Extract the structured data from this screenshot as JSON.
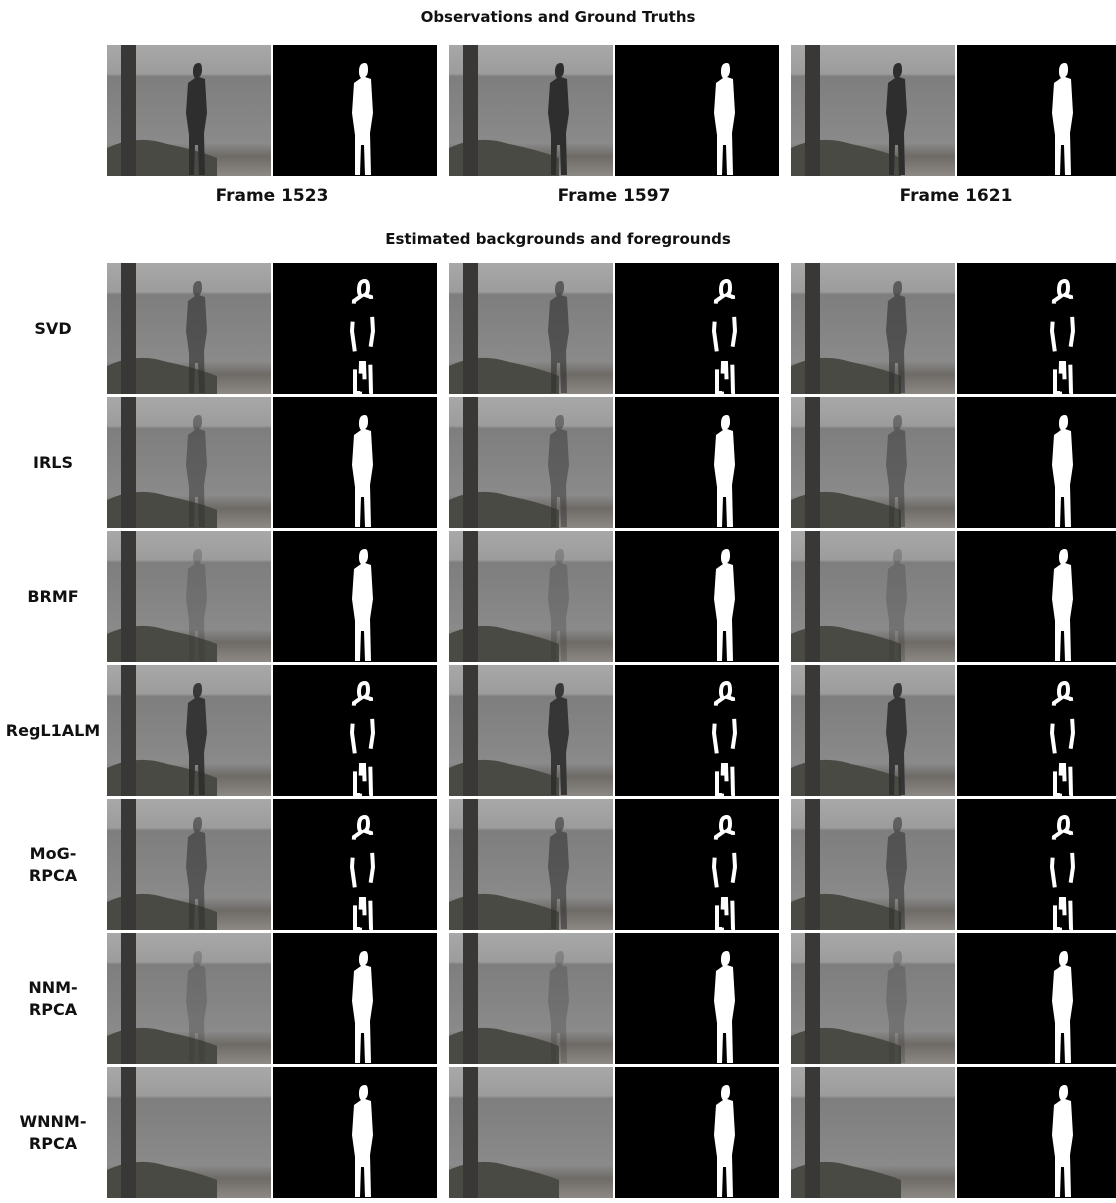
{
  "header": {
    "title": "Observations and Ground Truths"
  },
  "frames": [
    "Frame 1523",
    "Frame 1597",
    "Frame 1621"
  ],
  "section_title": "Estimated backgrounds and foregrounds",
  "methods": [
    [
      "SVD"
    ],
    [
      "IRLS"
    ],
    [
      "BRMF"
    ],
    [
      "RegL1ALM"
    ],
    [
      "MoG-",
      "RPCA"
    ],
    [
      "NNM-",
      "RPCA"
    ],
    [
      "WNNM-",
      "RPCA"
    ]
  ]
}
